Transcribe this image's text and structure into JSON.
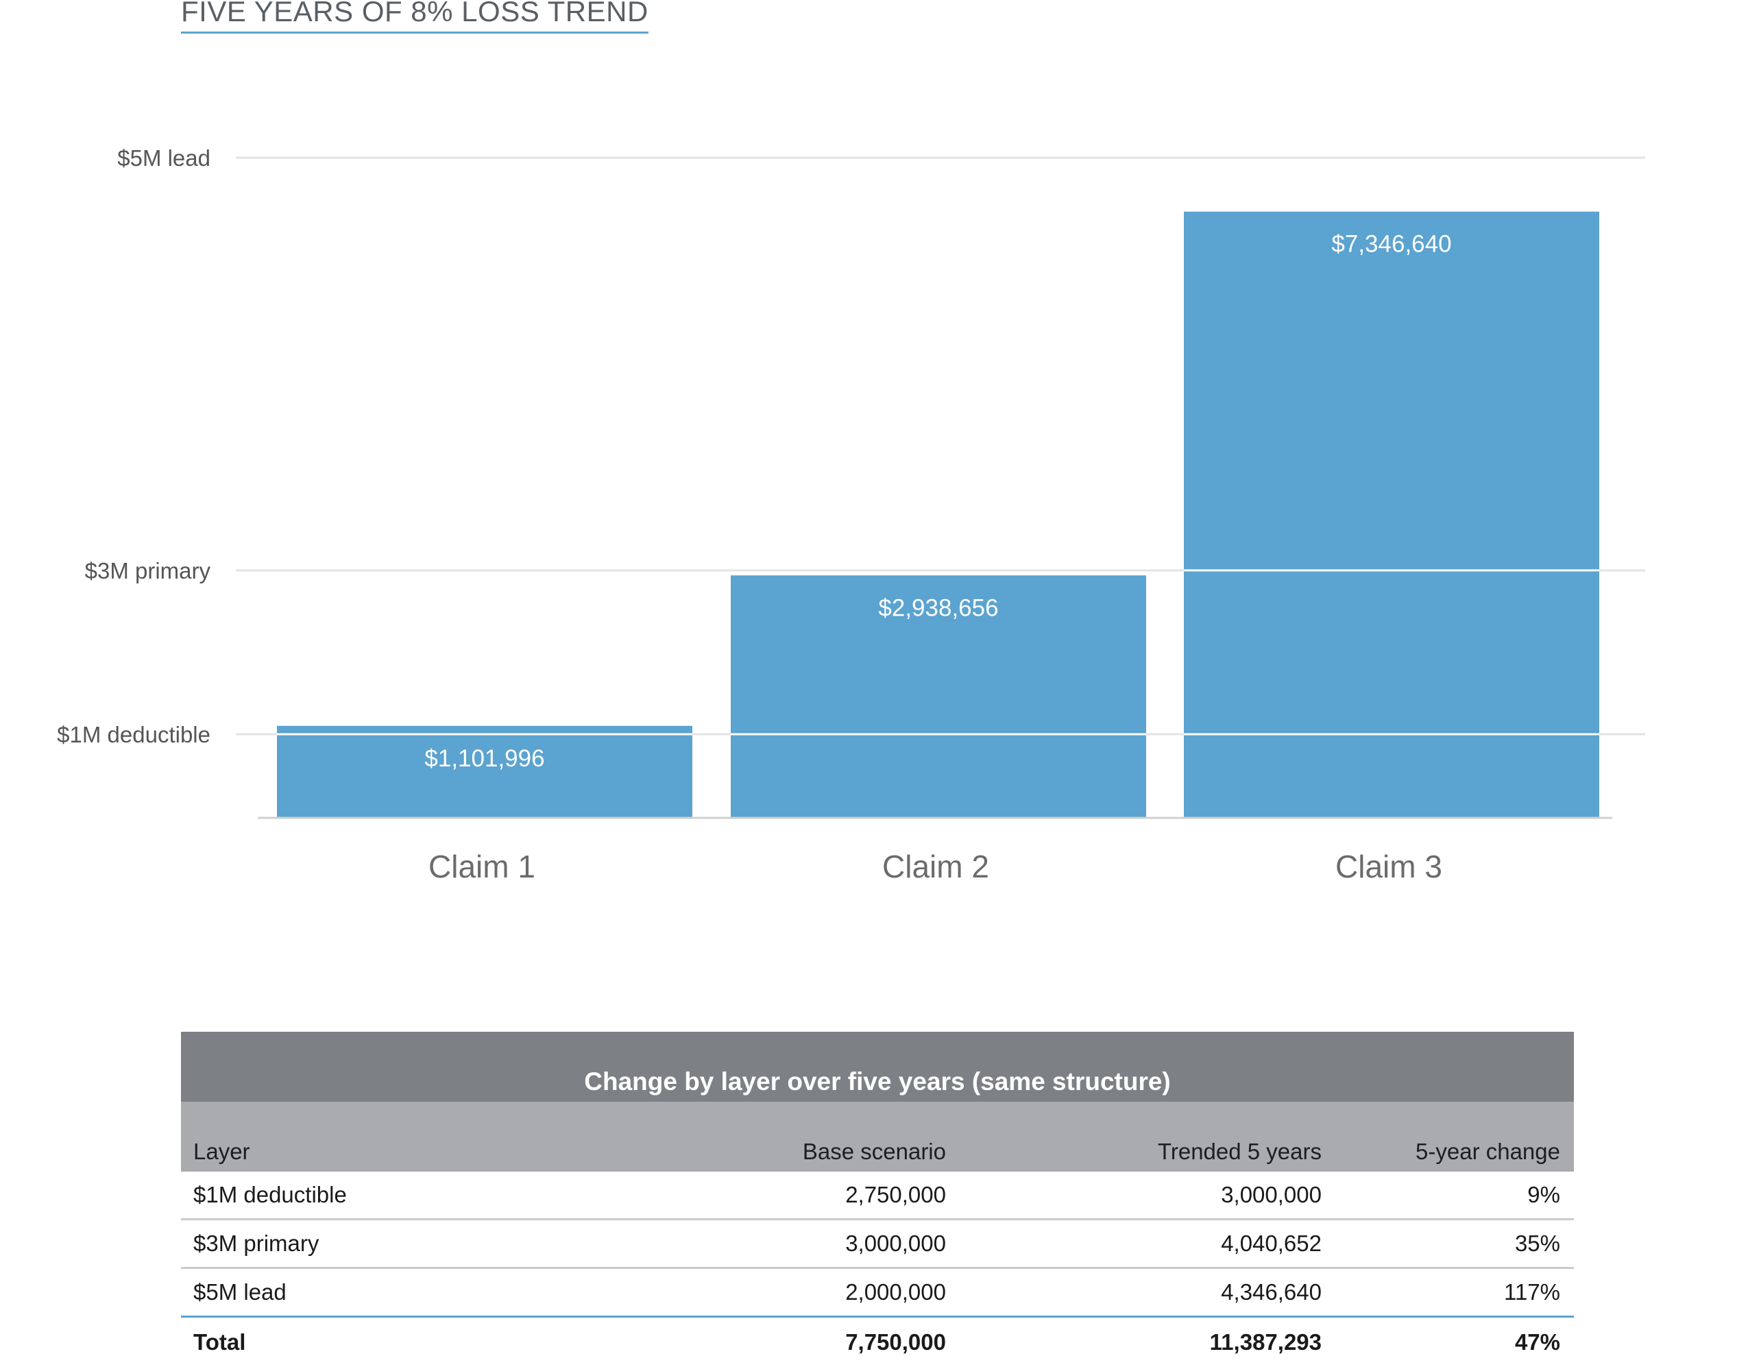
{
  "title": "FIVE YEARS OF 8% LOSS TREND",
  "chart_data": {
    "type": "bar",
    "title": "FIVE YEARS OF 8% LOSS TREND",
    "categories": [
      "Claim 1",
      "Claim 2",
      "Claim 3"
    ],
    "values": [
      1101996,
      2938656,
      7346640
    ],
    "value_labels": [
      "$1,101,996",
      "$2,938,656",
      "$7,346,640"
    ],
    "y_ticks": [
      {
        "value": 1000000,
        "label": "$1M deductible"
      },
      {
        "value": 3000000,
        "label": "$3M primary"
      },
      {
        "value": 8000000,
        "label": "$5M lead"
      }
    ],
    "ylim": [
      0,
      8000000
    ],
    "grid": true,
    "bar_color": "#5ba3d0",
    "grid_color": "#e3e3e3"
  },
  "table": {
    "caption": "Change by layer over five years (same structure)",
    "headers": [
      "Layer",
      "Base scenario",
      "Trended 5 years",
      "5-year change"
    ],
    "rows": [
      [
        "$1M deductible",
        "2,750,000",
        "3,000,000",
        "9%"
      ],
      [
        "$3M primary",
        "3,000,000",
        "4,040,652",
        "35%"
      ],
      [
        "$5M lead",
        "2,000,000",
        "4,346,640",
        "117%"
      ]
    ],
    "total": [
      "Total",
      "7,750,000",
      "11,387,293",
      "47%"
    ]
  }
}
